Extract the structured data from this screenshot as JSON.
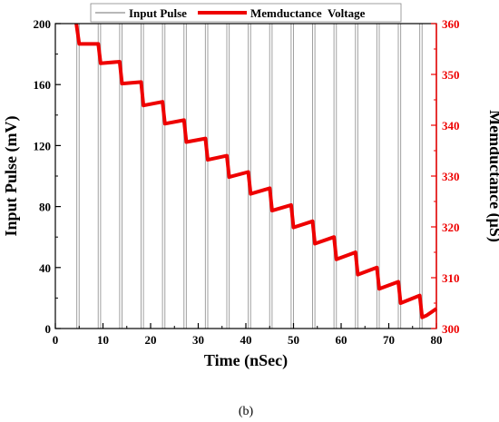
{
  "caption": "(b)",
  "colors": {
    "pulse": "#a0a0a0",
    "memductance": "#ee0000",
    "axis": "#000000",
    "right_axis": "#ee0000"
  },
  "chart_data": {
    "type": "line",
    "xlabel": "Time (nSec)",
    "ylabel_left": "Input Pulse (mV)",
    "ylabel_right": "Memductance (μS)",
    "xlim": [
      0,
      80
    ],
    "ylim_left": [
      0,
      200
    ],
    "ylim_right": [
      300,
      360
    ],
    "x_ticks": [
      "0",
      "10",
      "20",
      "30",
      "40",
      "50",
      "60",
      "70",
      "80"
    ],
    "y_left_ticks": [
      "0",
      "40",
      "80",
      "120",
      "160",
      "200"
    ],
    "y_right_ticks": [
      "300",
      "310",
      "320",
      "330",
      "340",
      "350",
      "360"
    ],
    "grid": false,
    "legend_position": "top",
    "series": [
      {
        "name": "Input Pulse",
        "axis": "left",
        "pulse_amplitude": 200,
        "pulse_width": 0.5,
        "pulse_starts": [
          4.5,
          9.0,
          13.5,
          18.0,
          22.5,
          27.0,
          31.5,
          36.0,
          40.5,
          45.0,
          49.5,
          54.0,
          58.5,
          63.0,
          67.5,
          72.0,
          76.5
        ]
      },
      {
        "name": "Memductance  Voltage",
        "axis": "right",
        "points": [
          [
            4.4,
            360.0
          ],
          [
            5.0,
            356.0
          ],
          [
            9.0,
            356.0
          ],
          [
            9.5,
            352.2
          ],
          [
            13.5,
            352.5
          ],
          [
            14.0,
            348.2
          ],
          [
            18.0,
            348.5
          ],
          [
            18.5,
            343.9
          ],
          [
            22.5,
            344.6
          ],
          [
            23.0,
            340.3
          ],
          [
            27.0,
            341.0
          ],
          [
            27.5,
            336.7
          ],
          [
            31.5,
            337.4
          ],
          [
            32.0,
            333.2
          ],
          [
            36.0,
            334.0
          ],
          [
            36.5,
            329.8
          ],
          [
            40.5,
            330.8
          ],
          [
            41.0,
            326.5
          ],
          [
            45.0,
            327.6
          ],
          [
            45.5,
            323.2
          ],
          [
            49.5,
            324.3
          ],
          [
            50.0,
            319.9
          ],
          [
            54.0,
            321.1
          ],
          [
            54.5,
            316.7
          ],
          [
            58.5,
            318.0
          ],
          [
            59.0,
            313.6
          ],
          [
            63.0,
            315.0
          ],
          [
            63.5,
            310.6
          ],
          [
            67.5,
            312.0
          ],
          [
            68.0,
            307.8
          ],
          [
            72.0,
            309.2
          ],
          [
            72.5,
            305.0
          ],
          [
            76.5,
            306.5
          ],
          [
            77.0,
            302.2
          ],
          [
            78.0,
            302.6
          ],
          [
            80.0,
            303.9
          ]
        ]
      }
    ]
  }
}
